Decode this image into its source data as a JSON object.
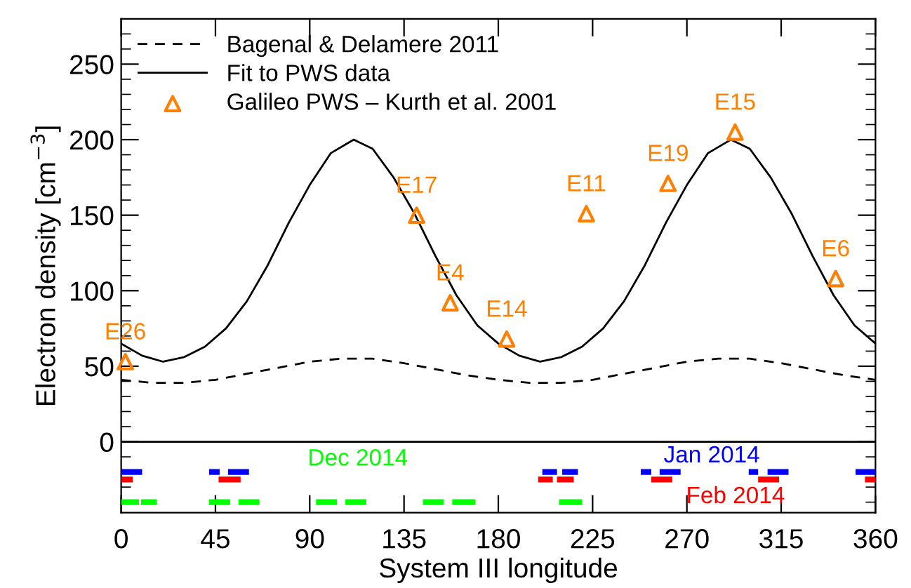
{
  "chart_data": {
    "type": "line",
    "xlabel": "System III longitude",
    "ylabel": "Electron density [cm$^{−3}$]",
    "xlim": [
      0,
      360
    ],
    "xticks": [
      0,
      45,
      90,
      135,
      180,
      225,
      270,
      315,
      360
    ],
    "ylim": [
      -47,
      280
    ],
    "yticks": [
      0,
      50,
      100,
      150,
      200,
      250,
      {
        "value": -40,
        "label": null
      },
      {
        "value": -30,
        "label": null
      },
      {
        "value": -20,
        "label": null
      },
      {
        "value": -10,
        "label": null
      },
      {
        "value": 10,
        "label": null
      },
      {
        "value": 20,
        "label": null
      },
      {
        "value": 30,
        "label": null
      },
      {
        "value": 40,
        "label": null
      },
      {
        "value": 60,
        "label": null
      },
      {
        "value": 70,
        "label": null
      },
      {
        "value": 80,
        "label": null
      },
      {
        "value": 90,
        "label": null
      },
      {
        "value": 110,
        "label": null
      },
      {
        "value": 120,
        "label": null
      },
      {
        "value": 130,
        "label": null
      },
      {
        "value": 140,
        "label": null
      },
      {
        "value": 160,
        "label": null
      },
      {
        "value": 170,
        "label": null
      },
      {
        "value": 180,
        "label": null
      },
      {
        "value": 190,
        "label": null
      },
      {
        "value": 210,
        "label": null
      },
      {
        "value": 220,
        "label": null
      },
      {
        "value": 230,
        "label": null
      },
      {
        "value": 240,
        "label": null
      },
      {
        "value": 260,
        "label": null
      },
      {
        "value": 270,
        "label": null
      },
      {
        "value": 280,
        "label": null
      }
    ],
    "grid": false,
    "legend": "top left",
    "ref_lines": [
      {
        "axis": "y",
        "value": 0,
        "color": "#000000"
      }
    ],
    "series": [
      {
        "name": "Bagenal & Delamere 2011",
        "line_style": "dashed",
        "color": "#000000",
        "x": [
          0,
          15,
          21,
          30,
          45,
          60,
          75,
          90,
          105,
          111,
          120,
          135,
          150,
          165,
          180,
          195,
          201,
          210,
          225,
          240,
          255,
          270,
          285,
          291,
          300,
          315,
          330,
          345,
          360
        ],
        "values": [
          41,
          39,
          39,
          39,
          41,
          45,
          49,
          53,
          55,
          55,
          55,
          52,
          48,
          44,
          41,
          39,
          39,
          39,
          41,
          45,
          49,
          53,
          55,
          55,
          55,
          52,
          48,
          44,
          41
        ]
      },
      {
        "name": "Fit to PWS data",
        "line_style": "solid",
        "color": "#000000",
        "x": [
          0,
          10,
          20,
          30,
          40,
          50,
          60,
          70,
          80,
          90,
          100,
          111,
          120,
          130,
          140,
          150,
          160,
          170,
          180,
          190,
          200,
          210,
          220,
          230,
          240,
          250,
          260,
          270,
          280,
          291,
          300,
          310,
          320,
          330,
          340,
          350,
          360
        ],
        "values": [
          65,
          57,
          53,
          56,
          63,
          75,
          93,
          117,
          145,
          170,
          191,
          200,
          194,
          175,
          151,
          123,
          97,
          77,
          65,
          57,
          53,
          56,
          63,
          75,
          93,
          117,
          145,
          170,
          191,
          200,
          194,
          175,
          151,
          123,
          97,
          77,
          65
        ]
      },
      {
        "name": "Galileo PWS – Kurth et al. 2001",
        "type": "scatter",
        "marker": "triangle",
        "color": "#ff8000",
        "x": [
          2,
          141,
          157,
          184,
          222,
          261,
          293,
          341
        ],
        "values": [
          53,
          150,
          92,
          68,
          151,
          171,
          205,
          108
        ]
      },
      {
        "color": "#0000ff",
        "x": [
          0,
          10,
          26,
          42,
          47,
          49,
          51,
          61,
          131,
          201,
          208,
          209,
          210.5,
          218,
          233,
          248,
          253,
          255,
          257,
          267,
          283,
          299.5,
          304,
          306,
          308.5,
          318.5,
          334,
          350.5,
          360
        ],
        "values": [
          -20,
          -20,
          null,
          -20,
          -20,
          null,
          -20,
          -20,
          null,
          -20,
          -20,
          null,
          -20,
          -20,
          null,
          -20,
          -20,
          null,
          -20,
          -20,
          null,
          -20,
          -20,
          null,
          -20,
          -20,
          null,
          -20,
          -20
        ]
      },
      {
        "color": "#ff0000",
        "x": [
          0,
          5.5,
          26,
          46.5,
          57,
          128,
          199,
          206,
          207,
          208,
          216,
          234,
          253,
          263,
          283,
          304,
          314,
          334,
          355,
          360
        ],
        "values": [
          -25,
          -25,
          null,
          -25,
          -25,
          null,
          -25,
          -25,
          null,
          -25,
          -25,
          null,
          -25,
          -25,
          null,
          -25,
          -25,
          null,
          -25,
          -25
        ]
      },
      {
        "color": "#00ff00",
        "x": [
          0,
          8.5,
          9,
          9.5,
          17,
          30,
          42,
          52,
          54,
          56,
          66,
          80,
          93,
          103,
          105,
          107,
          117,
          130,
          144,
          154,
          156,
          158,
          169,
          190,
          209,
          220
        ],
        "values": [
          -40,
          -40,
          null,
          -40,
          -40,
          null,
          -40,
          -40,
          null,
          -40,
          -40,
          null,
          -40,
          -40,
          null,
          -40,
          -40,
          null,
          -40,
          -40,
          null,
          -40,
          -40,
          null,
          -40,
          -40
        ]
      }
    ],
    "annotations": [
      {
        "text": "E26",
        "x": 2,
        "y": 53
      },
      {
        "text": "E17",
        "x": 141,
        "y": 150
      },
      {
        "text": "E4",
        "x": 157,
        "y": 92
      },
      {
        "text": "E14",
        "x": 184,
        "y": 68
      },
      {
        "text": "E11",
        "x": 222,
        "y": 151
      },
      {
        "text": "E19",
        "x": 261,
        "y": 171
      },
      {
        "text": "E15",
        "x": 293,
        "y": 205
      },
      {
        "text": "E6",
        "x": 341,
        "y": 108
      },
      {
        "text": "Jan 2014",
        "x": 313.5,
        "y": -20
      },
      {
        "text": "Feb 2014",
        "x": 309,
        "y": -25
      },
      {
        "text": "Dec 2014",
        "x": 112,
        "y": -40
      }
    ]
  }
}
